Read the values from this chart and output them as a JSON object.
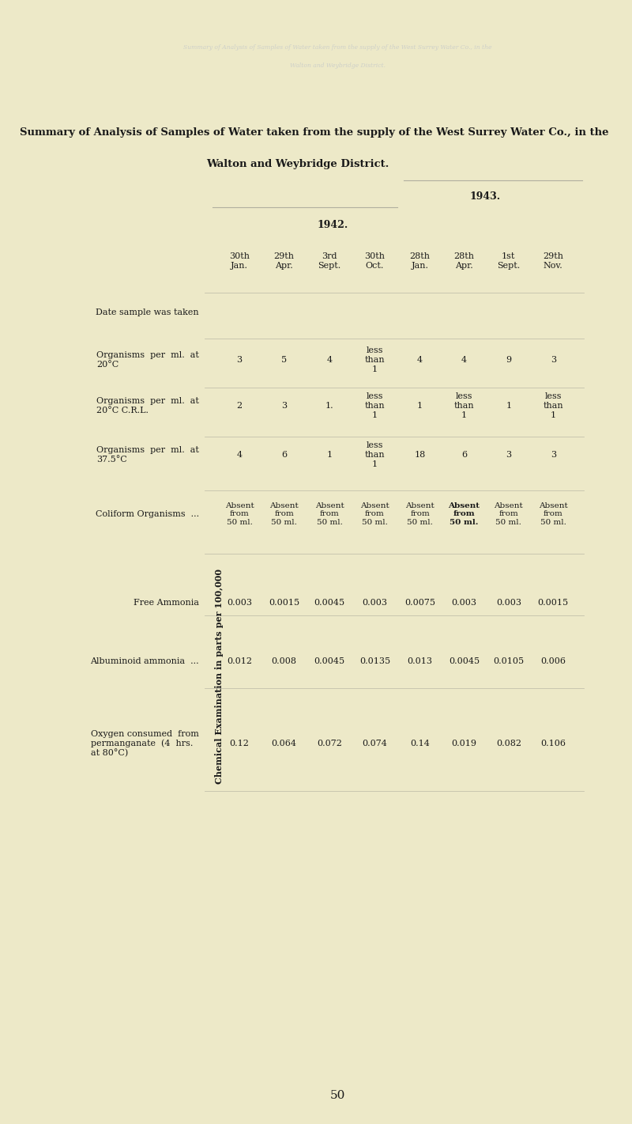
{
  "background_color": "#ede9c8",
  "text_color": "#1a1a1a",
  "title_line1": "Summary of Analysis of Samples of Water taken from the supply of the West Surrey Water Co., in the",
  "title_line2": "Walton and Weybridge District.",
  "ghost_line1": "Summary of Analysis of Samples of Water taken from the supply of the West Surrey Water Co., in the",
  "ghost_line2": "Walton and Weybridge District.",
  "year_1942": "1942.",
  "year_1943": "1943.",
  "columns": [
    "30th\nJan.",
    "29th\nApr.",
    "3rd\nSept.",
    "30th\nOct.",
    "28th\nJan.",
    "28th\nApr.",
    "1st\nSept.",
    "29th\nNov."
  ],
  "row_labels": [
    "Date sample was taken",
    "Organisms  per  ml.  at\n20°C",
    "Organisms  per  ml.  at\n20°C C.R.L.",
    "Organisms  per  ml.  at\n37.5°C",
    "Coliform Organisms  ...",
    "Free Ammonia",
    "Albuminoid ammonia  ...",
    "Oxygen consumed  from\npermanganate  (4  hrs.\nat 80°C)"
  ],
  "data": [
    [
      "",
      "",
      "",
      "",
      "",
      "",
      "",
      ""
    ],
    [
      "3",
      "5",
      "4",
      "less\nthan\n1",
      "4",
      "4",
      "9",
      "3"
    ],
    [
      "2",
      "3",
      "1.",
      "less\nthan\n1",
      "1",
      "less\nthan\n1",
      "1",
      "less\nthan\n1"
    ],
    [
      "4",
      "6",
      "1",
      "less\nthan\n1",
      "18",
      "6",
      "3",
      "3"
    ],
    [
      "Absent\nfrom\n50 ml.",
      "Absent\nfrom\n50 ml.",
      "Absent\nfrom\n50 ml.",
      "Absent\nfrom\n50 ml.",
      "Absent\nfrom\n50 ml.",
      "Absent\nfrom\n50 ml.",
      "Absent\nfrom\n50 ml.",
      "Absent\nfrom\n50 ml."
    ],
    [
      "0.003",
      "0.0015",
      "0.0045",
      "0.003",
      "0.0075",
      "0.003",
      "0.003",
      "0.0015"
    ],
    [
      "0.012",
      "0.008",
      "0.0045",
      "0.0135",
      "0.013",
      "0.0045",
      "0.0105",
      "0.006"
    ],
    [
      "0.12",
      "0.064",
      "0.072",
      "0.074",
      "0.14",
      "0.019",
      "0.082",
      "0.106"
    ]
  ],
  "chemical_label": "Chemical Examination in parts per 100,000",
  "footer": "50",
  "col_bold": [
    4
  ],
  "absent_bold_col": 5
}
